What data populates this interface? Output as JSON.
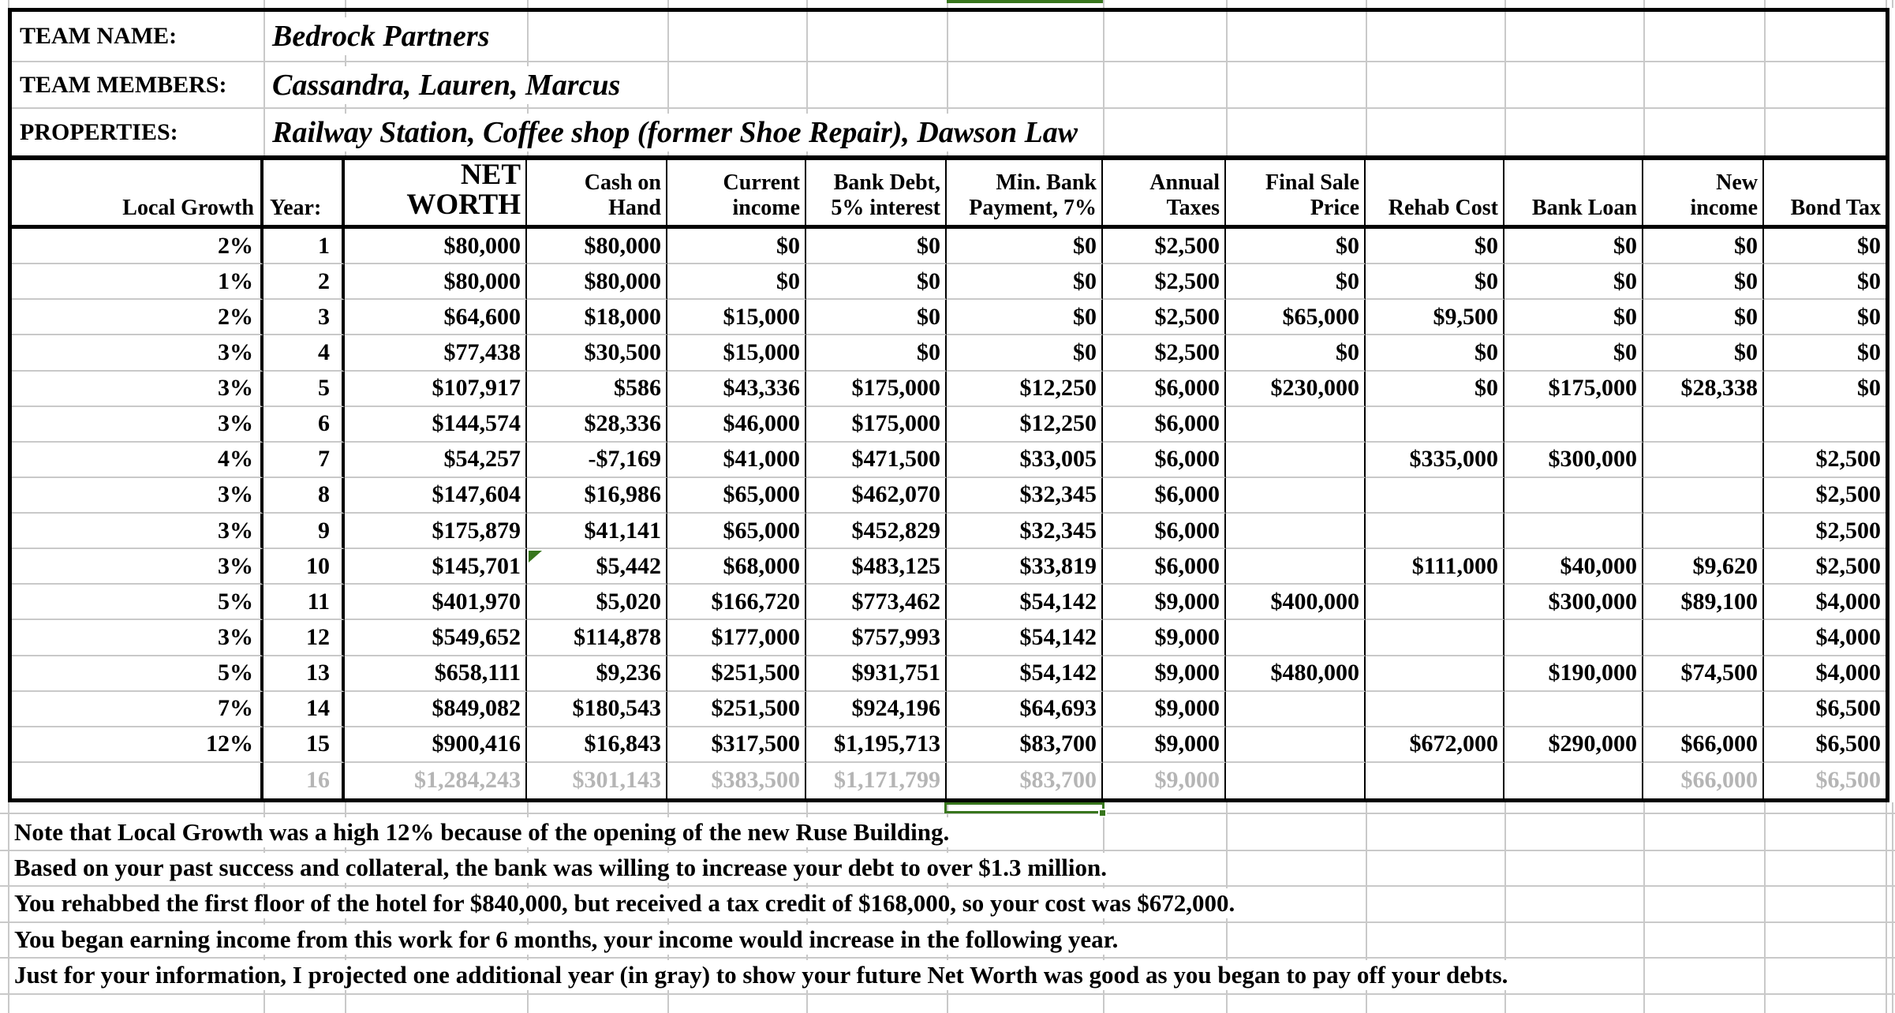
{
  "team": {
    "rows": [
      {
        "label": "TEAM NAME:",
        "value": "Bedrock Partners"
      },
      {
        "label": "TEAM MEMBERS:",
        "value": "Cassandra, Lauren, Marcus"
      },
      {
        "label": "PROPERTIES:",
        "value": "Railway Station, Coffee shop (former Shoe Repair), Dawson Law"
      }
    ]
  },
  "table": {
    "headers": [
      {
        "id": "local-growth",
        "lines": [
          "Local Growth"
        ]
      },
      {
        "id": "year",
        "lines": [
          "Year:"
        ]
      },
      {
        "id": "net-worth",
        "lines": [
          "NET",
          "WORTH"
        ]
      },
      {
        "id": "cash-on-hand",
        "lines": [
          "Cash on",
          "Hand"
        ]
      },
      {
        "id": "current-income",
        "lines": [
          "Current",
          "income"
        ]
      },
      {
        "id": "bank-debt",
        "lines": [
          "Bank Debt,",
          "5% interest"
        ]
      },
      {
        "id": "min-bank-payment",
        "lines": [
          "Min. Bank",
          "Payment, 7%"
        ]
      },
      {
        "id": "annual-taxes",
        "lines": [
          "Annual",
          "Taxes"
        ]
      },
      {
        "id": "final-sale-price",
        "lines": [
          "Final Sale",
          "Price"
        ]
      },
      {
        "id": "rehab-cost",
        "lines": [
          "Rehab Cost"
        ]
      },
      {
        "id": "bank-loan",
        "lines": [
          "Bank Loan"
        ]
      },
      {
        "id": "new-income",
        "lines": [
          "New",
          "income"
        ]
      },
      {
        "id": "bond-tax",
        "lines": [
          "Bond Tax"
        ]
      }
    ],
    "gray_row_index": 15,
    "rows": [
      [
        "2%",
        "1",
        "$80,000",
        "$80,000",
        "$0",
        "$0",
        "$0",
        "$2,500",
        "$0",
        "$0",
        "$0",
        "$0",
        "$0"
      ],
      [
        "1%",
        "2",
        "$80,000",
        "$80,000",
        "$0",
        "$0",
        "$0",
        "$2,500",
        "$0",
        "$0",
        "$0",
        "$0",
        "$0"
      ],
      [
        "2%",
        "3",
        "$64,600",
        "$18,000",
        "$15,000",
        "$0",
        "$0",
        "$2,500",
        "$65,000",
        "$9,500",
        "$0",
        "$0",
        "$0"
      ],
      [
        "3%",
        "4",
        "$77,438",
        "$30,500",
        "$15,000",
        "$0",
        "$0",
        "$2,500",
        "$0",
        "$0",
        "$0",
        "$0",
        "$0"
      ],
      [
        "3%",
        "5",
        "$107,917",
        "$586",
        "$43,336",
        "$175,000",
        "$12,250",
        "$6,000",
        "$230,000",
        "$0",
        "$175,000",
        "$28,338",
        "$0"
      ],
      [
        "3%",
        "6",
        "$144,574",
        "$28,336",
        "$46,000",
        "$175,000",
        "$12,250",
        "$6,000",
        "",
        "",
        "",
        "",
        ""
      ],
      [
        "4%",
        "7",
        "$54,257",
        "-$7,169",
        "$41,000",
        "$471,500",
        "$33,005",
        "$6,000",
        "",
        "$335,000",
        "$300,000",
        "",
        "$2,500"
      ],
      [
        "3%",
        "8",
        "$147,604",
        "$16,986",
        "$65,000",
        "$462,070",
        "$32,345",
        "$6,000",
        "",
        "",
        "",
        "",
        "$2,500"
      ],
      [
        "3%",
        "9",
        "$175,879",
        "$41,141",
        "$65,000",
        "$452,829",
        "$32,345",
        "$6,000",
        "",
        "",
        "",
        "",
        "$2,500"
      ],
      [
        "3%",
        "10",
        "$145,701",
        "$5,442",
        "$68,000",
        "$483,125",
        "$33,819",
        "$6,000",
        "",
        "$111,000",
        "$40,000",
        "$9,620",
        "$2,500"
      ],
      [
        "5%",
        "11",
        "$401,970",
        "$5,020",
        "$166,720",
        "$773,462",
        "$54,142",
        "$9,000",
        "$400,000",
        "",
        "$300,000",
        "$89,100",
        "$4,000"
      ],
      [
        "3%",
        "12",
        "$549,652",
        "$114,878",
        "$177,000",
        "$757,993",
        "$54,142",
        "$9,000",
        "",
        "",
        "",
        "",
        "$4,000"
      ],
      [
        "5%",
        "13",
        "$658,111",
        "$9,236",
        "$251,500",
        "$931,751",
        "$54,142",
        "$9,000",
        "$480,000",
        "",
        "$190,000",
        "$74,500",
        "$4,000"
      ],
      [
        "7%",
        "14",
        "$849,082",
        "$180,543",
        "$251,500",
        "$924,196",
        "$64,693",
        "$9,000",
        "",
        "",
        "",
        "",
        "$6,500"
      ],
      [
        "12%",
        "15",
        "$900,416",
        "$16,843",
        "$317,500",
        "$1,195,713",
        "$83,700",
        "$9,000",
        "",
        "$672,000",
        "$290,000",
        "$66,000",
        "$6,500"
      ],
      [
        "",
        "16",
        "$1,284,243",
        "$301,143",
        "$383,500",
        "$1,171,799",
        "$83,700",
        "$9,000",
        "",
        "",
        "",
        "$66,000",
        "$6,500"
      ]
    ]
  },
  "notes": [
    "Note that Local Growth was a high 12% because of the opening of the new Ruse Building.",
    "Based on your past success and collateral, the bank was willing to increase your debt to over $1.3 million.",
    "You rehabbed the first floor of the hotel for $840,000, but received a tax credit of $168,000, so your cost was $672,000.",
    "You began earning income from this work for 6 months, your income would increase in the following year.",
    "Just for your information, I projected one additional year (in gray) to show your future Net Worth was good as you began to pay off your debts."
  ],
  "indicators": {
    "flagged_cell": "year 10 Cash on Hand has green corner flag",
    "selected_cell_column": "Min. Bank Payment, 7% (empty row below table)",
    "projected_row": "year 16 shown in gray"
  },
  "colors": {
    "selection_green": "#38761d",
    "flag_green": "#38761d",
    "muted_text_gray": "#b5b5b5",
    "gridline_gray": "#c9c9c9",
    "border_black": "#000000"
  }
}
